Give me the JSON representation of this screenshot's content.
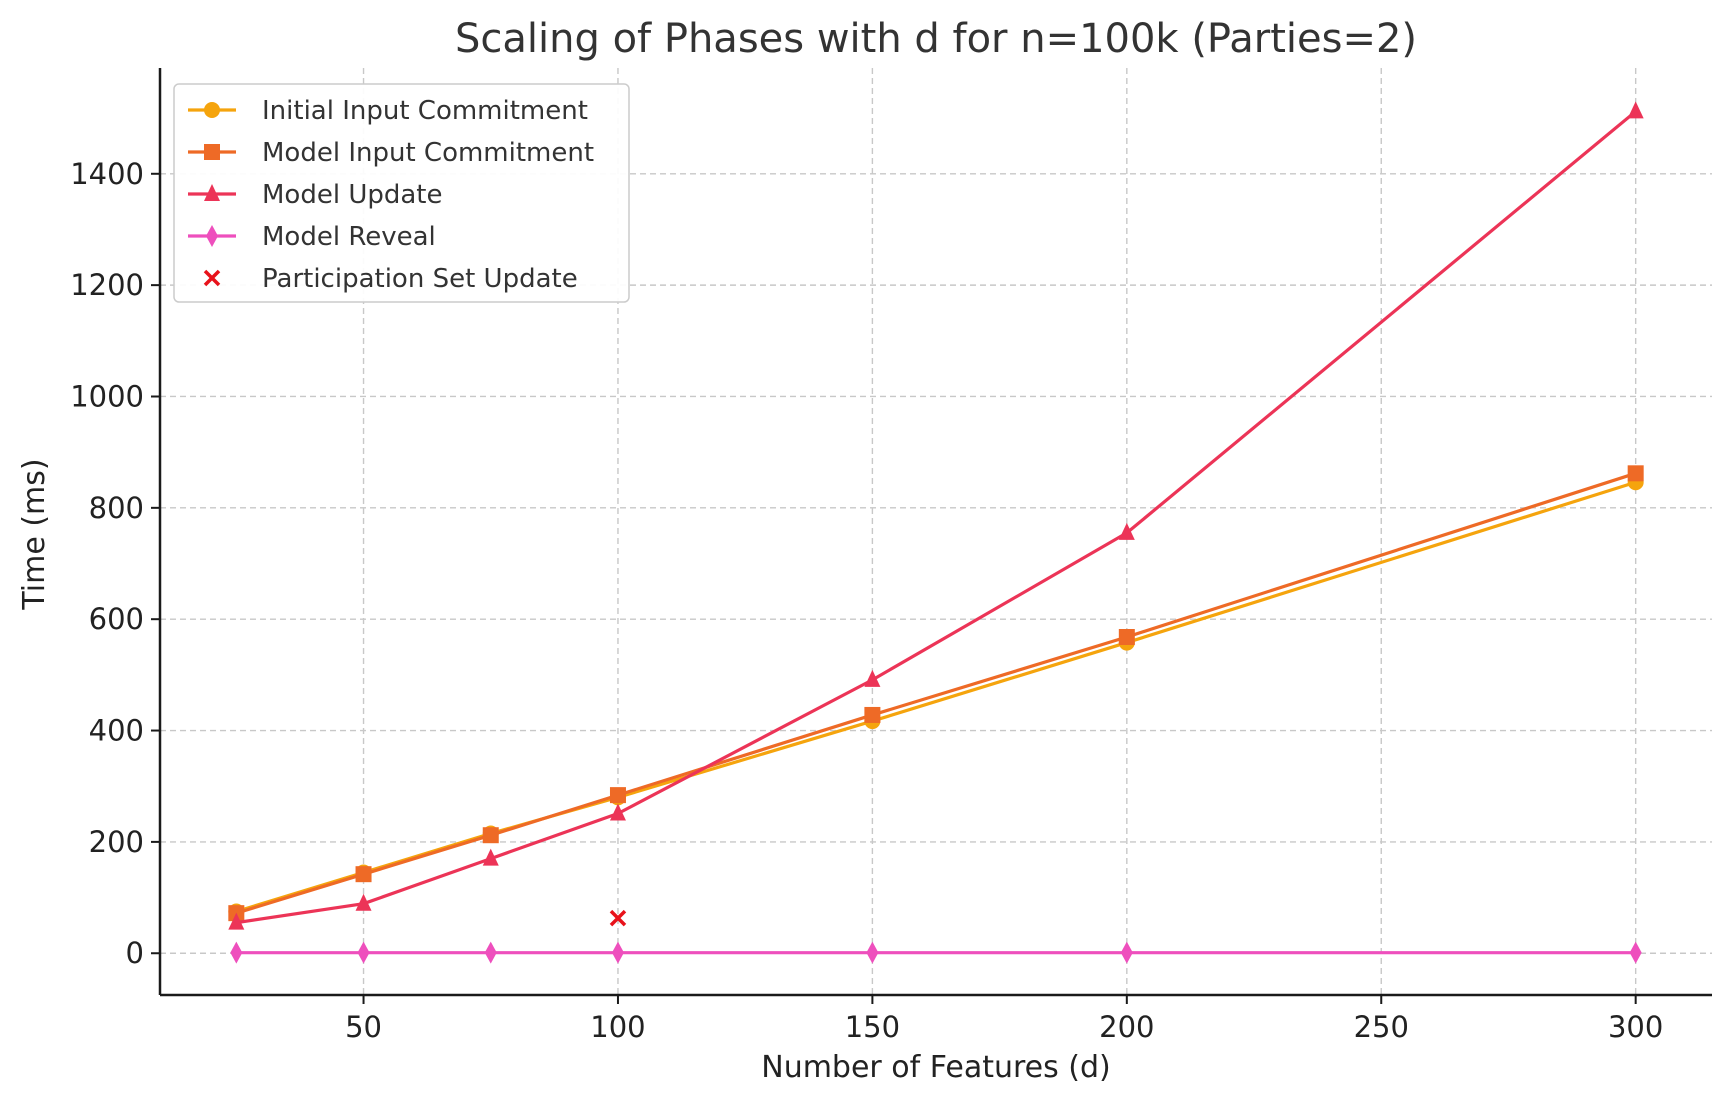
{
  "chart_data": {
    "type": "line",
    "title": "Scaling of Phases with d for n=100k (Parties=2)",
    "xlabel": "Number of Features (d)",
    "ylabel": "Time (ms)",
    "xlim": [
      10,
      315
    ],
    "ylim": [
      -75,
      1590
    ],
    "xticks": [
      50,
      100,
      150,
      200,
      250,
      300
    ],
    "yticks": [
      0,
      200,
      400,
      600,
      800,
      1000,
      1200,
      1400
    ],
    "grid": true,
    "legend_position": "top-left",
    "series": [
      {
        "name": "Initial Input Commitment",
        "color": "#f5a40d",
        "marker": "circle",
        "x": [
          25,
          50,
          75,
          100,
          150,
          200,
          300
        ],
        "y": [
          75,
          145,
          215,
          280,
          417,
          558,
          846
        ]
      },
      {
        "name": "Model Input Commitment",
        "color": "#ee6a26",
        "marker": "square",
        "x": [
          25,
          50,
          75,
          100,
          150,
          200,
          300
        ],
        "y": [
          72,
          142,
          212,
          284,
          428,
          568,
          862
        ]
      },
      {
        "name": "Model Update",
        "color": "#ec3457",
        "marker": "triangle",
        "x": [
          25,
          50,
          75,
          100,
          150,
          200,
          300
        ],
        "y": [
          55,
          89,
          170,
          251,
          491,
          755,
          1512
        ]
      },
      {
        "name": "Model Reveal",
        "color": "#ee4fbd",
        "marker": "diamond",
        "x": [
          25,
          50,
          75,
          100,
          150,
          200,
          300
        ],
        "y": [
          1,
          1,
          1,
          1,
          1,
          1,
          1
        ]
      },
      {
        "name": "Participation Set Update",
        "color": "#e8121b",
        "marker": "x",
        "line": false,
        "x": [
          100
        ],
        "y": [
          63
        ]
      }
    ]
  }
}
